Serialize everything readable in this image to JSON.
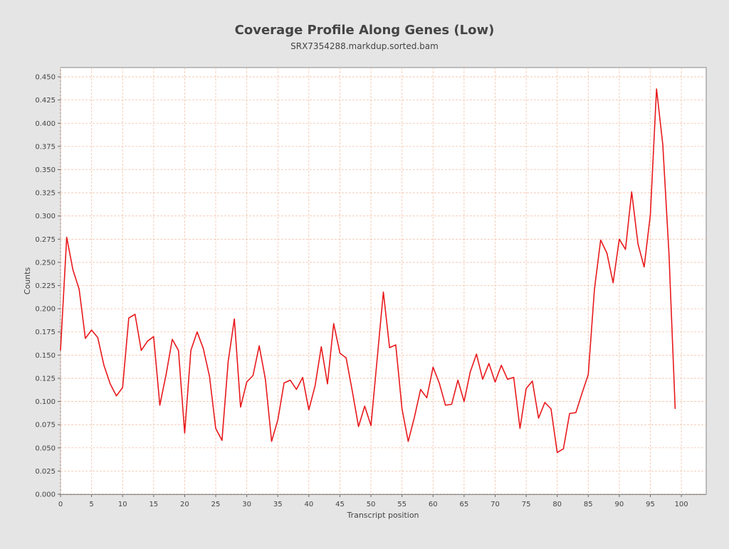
{
  "chart_data": {
    "type": "line",
    "title": "Coverage Profile Along Genes (Low)",
    "subtitle": "SRX7354288.markdup.sorted.bam",
    "xlabel": "Transcript position",
    "ylabel": "Counts",
    "xlim": [
      0,
      104
    ],
    "ylim": [
      0,
      0.46
    ],
    "x_ticks": [
      0,
      5,
      10,
      15,
      20,
      25,
      30,
      35,
      40,
      45,
      50,
      55,
      60,
      65,
      70,
      75,
      80,
      85,
      90,
      95,
      100
    ],
    "y_ticks": [
      0.0,
      0.025,
      0.05,
      0.075,
      0.1,
      0.125,
      0.15,
      0.175,
      0.2,
      0.225,
      0.25,
      0.275,
      0.3,
      0.325,
      0.35,
      0.375,
      0.4,
      0.425,
      0.45
    ],
    "y_tick_labels": [
      "0.000",
      "0.025",
      "0.050",
      "0.075",
      "0.100",
      "0.125",
      "0.150",
      "0.175",
      "0.200",
      "0.225",
      "0.250",
      "0.275",
      "0.300",
      "0.325",
      "0.350",
      "0.375",
      "0.400",
      "0.425",
      "0.450"
    ],
    "grid": true,
    "series": [
      {
        "color": "#e8191c",
        "x": [
          0,
          1,
          2,
          3,
          4,
          5,
          6,
          7,
          8,
          9,
          10,
          11,
          12,
          13,
          14,
          15,
          16,
          17,
          18,
          19,
          20,
          21,
          22,
          23,
          24,
          25,
          26,
          27,
          28,
          29,
          30,
          31,
          32,
          33,
          34,
          35,
          36,
          37,
          38,
          39,
          40,
          41,
          42,
          43,
          44,
          45,
          46,
          47,
          48,
          49,
          50,
          51,
          52,
          53,
          54,
          55,
          56,
          57,
          58,
          59,
          60,
          61,
          62,
          63,
          64,
          65,
          66,
          67,
          68,
          69,
          70,
          71,
          72,
          73,
          74,
          75,
          76,
          77,
          78,
          79,
          80,
          81,
          82,
          83,
          84,
          85,
          86,
          87,
          88,
          89,
          90,
          91,
          92,
          93,
          94,
          95,
          96,
          97,
          98,
          99
        ],
        "y": [
          0.155,
          0.277,
          0.242,
          0.221,
          0.168,
          0.177,
          0.169,
          0.139,
          0.119,
          0.106,
          0.115,
          0.19,
          0.194,
          0.155,
          0.165,
          0.17,
          0.096,
          0.129,
          0.167,
          0.155,
          0.066,
          0.155,
          0.175,
          0.157,
          0.127,
          0.071,
          0.058,
          0.143,
          0.189,
          0.094,
          0.121,
          0.128,
          0.16,
          0.124,
          0.057,
          0.08,
          0.12,
          0.123,
          0.113,
          0.126,
          0.091,
          0.117,
          0.159,
          0.119,
          0.184,
          0.152,
          0.147,
          0.111,
          0.073,
          0.095,
          0.074,
          0.146,
          0.218,
          0.158,
          0.161,
          0.092,
          0.057,
          0.083,
          0.113,
          0.104,
          0.137,
          0.12,
          0.096,
          0.097,
          0.123,
          0.1,
          0.132,
          0.151,
          0.124,
          0.141,
          0.121,
          0.139,
          0.124,
          0.126,
          0.071,
          0.114,
          0.122,
          0.082,
          0.099,
          0.092,
          0.045,
          0.049,
          0.087,
          0.088,
          0.109,
          0.129,
          0.221,
          0.274,
          0.26,
          0.228,
          0.275,
          0.264,
          0.326,
          0.27,
          0.245,
          0.301,
          0.437,
          0.377,
          0.259,
          0.092
        ]
      }
    ]
  }
}
